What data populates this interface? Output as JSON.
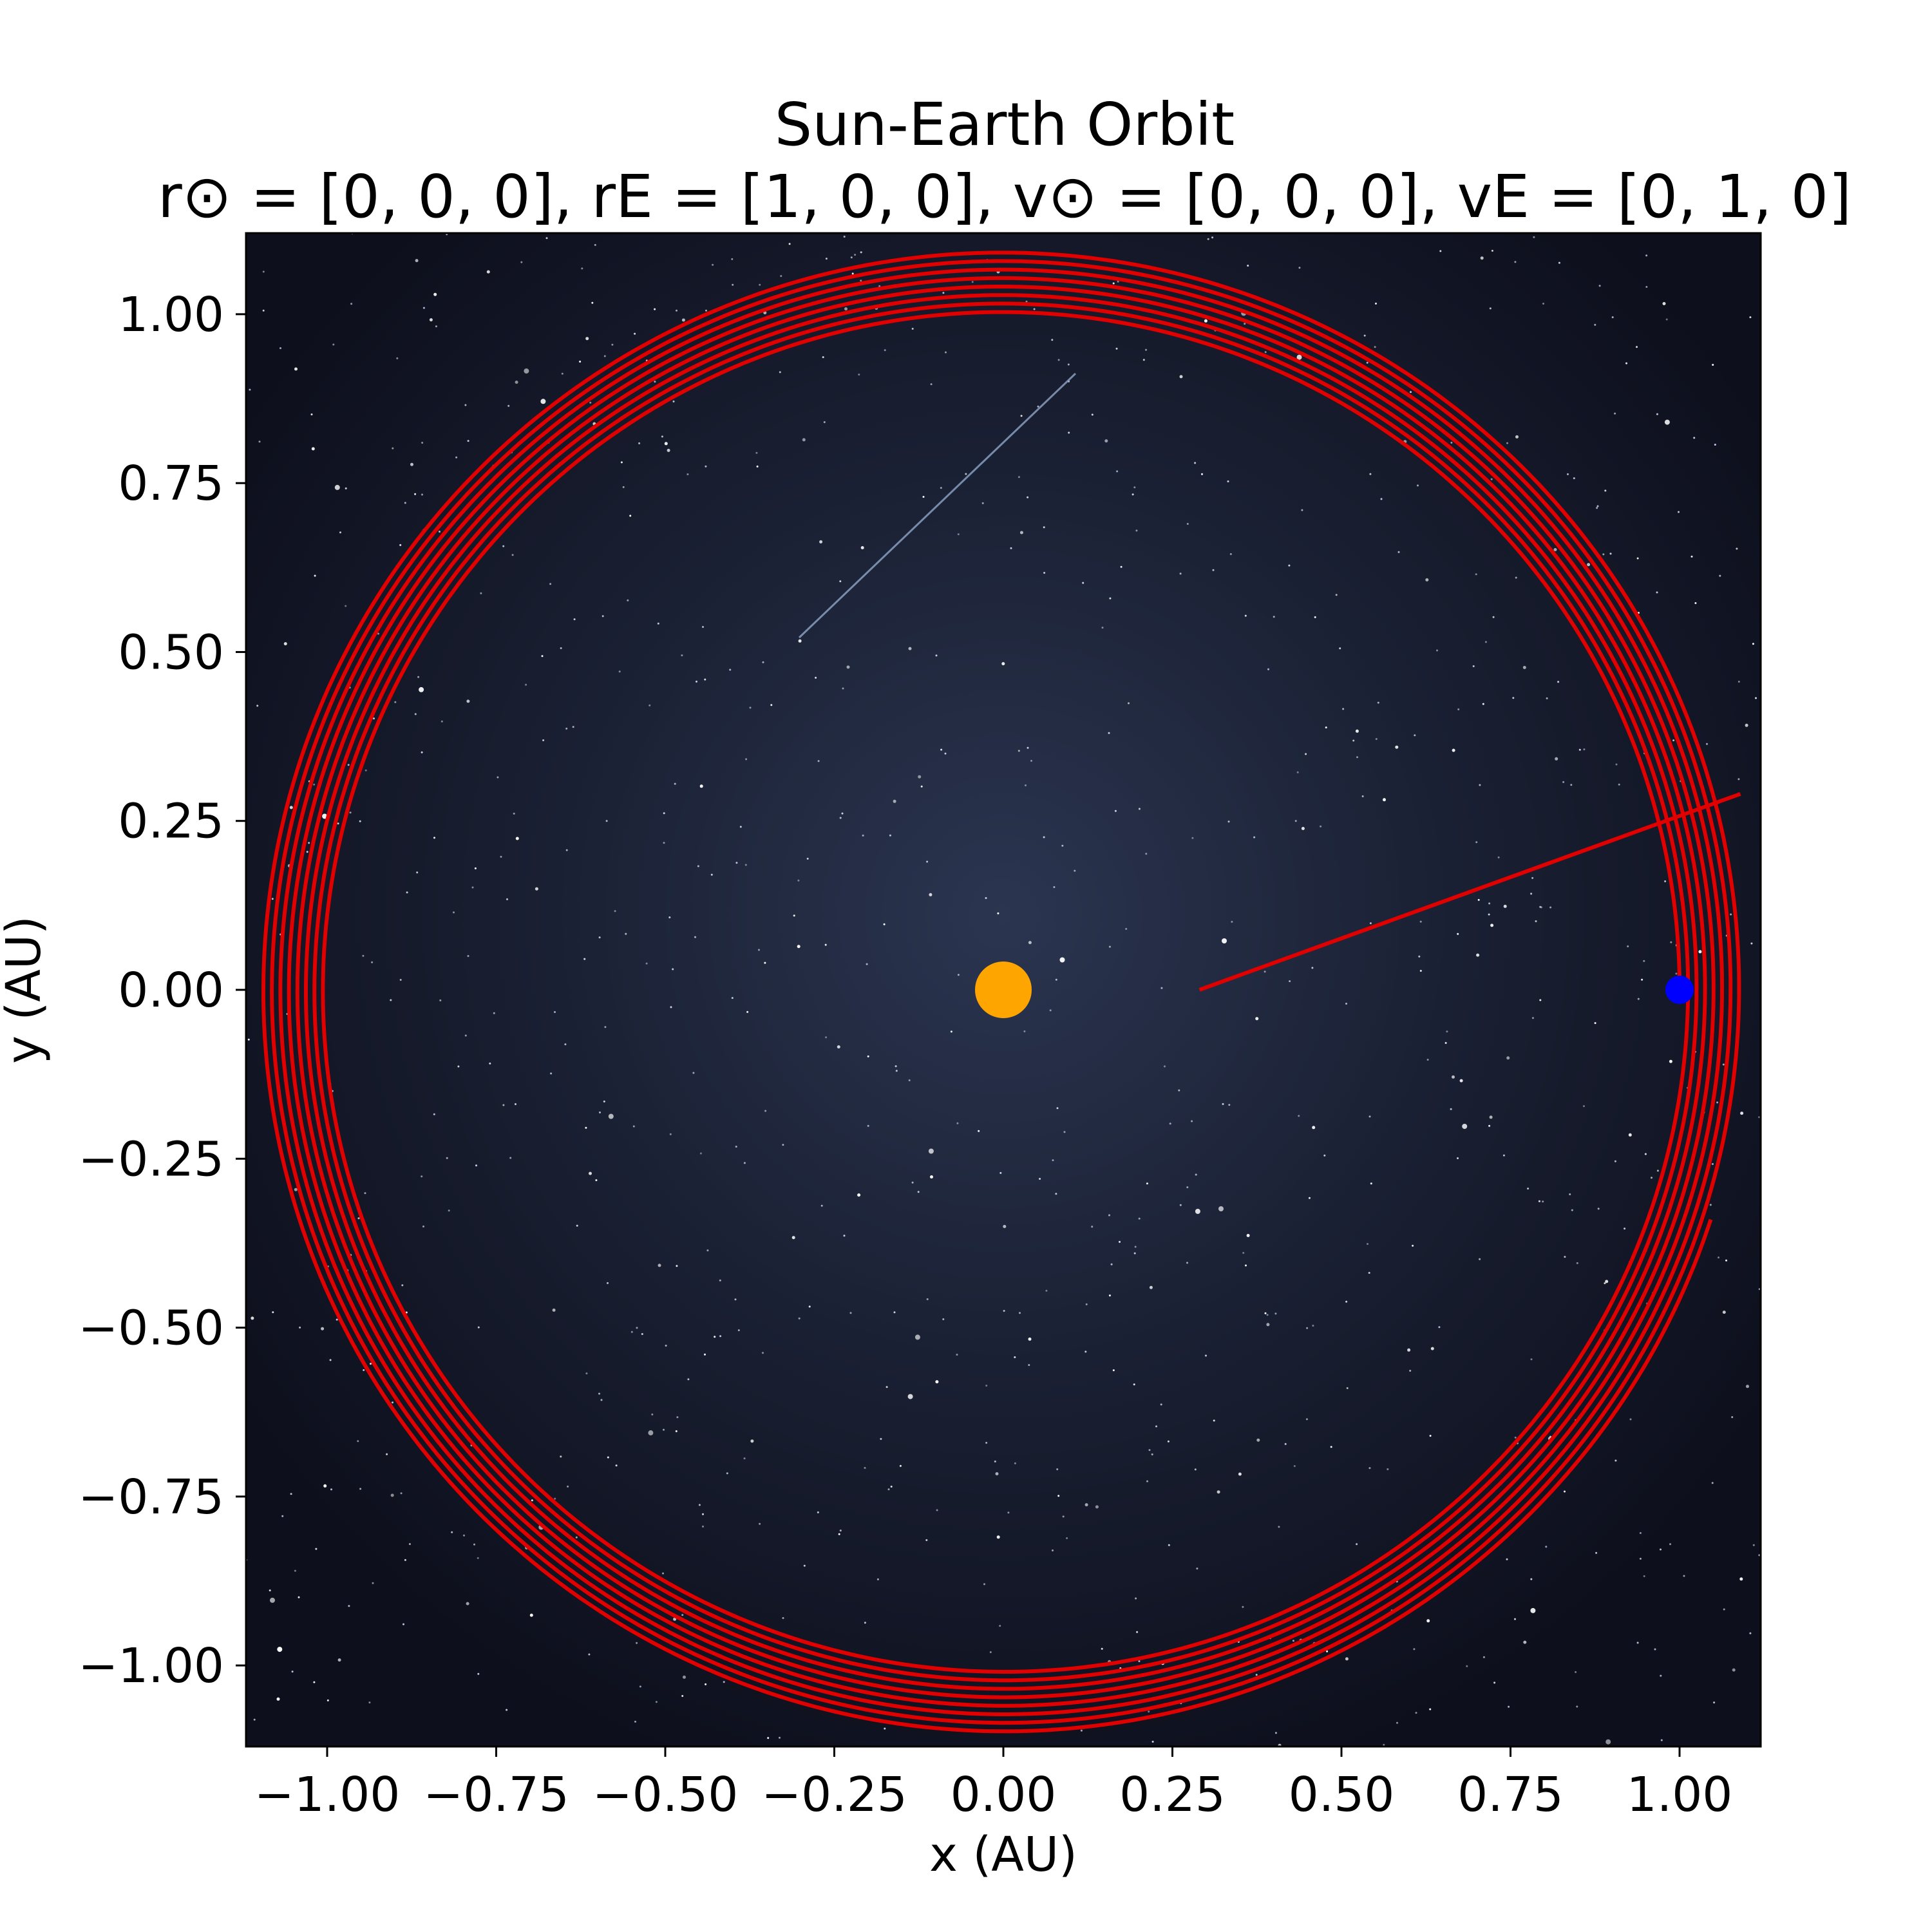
{
  "chart_data": {
    "type": "line",
    "title": "Sun-Earth Orbit",
    "subtitle": {
      "r_sun": "r⊙ = [0, 0, 0]",
      "r_earth": "rE = [1, 0, 0]",
      "v_sun": "v⊙ = [0, 0, 0]",
      "v_earth": "vE = [0, 1, 0]",
      "separator": ", "
    },
    "xlabel": "x (AU)",
    "ylabel": "y (AU)",
    "xlim": [
      -1.12,
      1.12
    ],
    "ylim": [
      -1.12,
      1.12
    ],
    "xticks": [
      -1.0,
      -0.75,
      -0.5,
      -0.25,
      0.0,
      0.25,
      0.5,
      0.75,
      1.0
    ],
    "yticks": [
      -1.0,
      -0.75,
      -0.5,
      -0.25,
      0.0,
      0.25,
      0.5,
      0.75,
      1.0
    ],
    "xtick_labels": [
      "−1.00",
      "−0.75",
      "−0.50",
      "−0.25",
      "0.00",
      "0.25",
      "0.50",
      "0.75",
      "1.00"
    ],
    "ytick_labels": [
      "−1.00",
      "−0.75",
      "−0.50",
      "−0.25",
      "0.00",
      "0.25",
      "0.50",
      "0.75",
      "1.00"
    ],
    "grid": false,
    "background": "starry night sky (photograph)",
    "orbit": {
      "color": "#e00000",
      "start_radius": 1.0,
      "end_radius": 1.1,
      "turns": 7.95,
      "center": [
        0.0,
        0.0
      ],
      "closing_line": {
        "from": [
          1.09,
          0.29
        ],
        "to": [
          0.29,
          0.0
        ]
      }
    },
    "bodies": [
      {
        "name": "Sun",
        "x": 0.0,
        "y": 0.0,
        "color": "#ffa500"
      },
      {
        "name": "Earth",
        "x": 1.0,
        "y": 0.0,
        "color": "#0000ff"
      }
    ]
  }
}
